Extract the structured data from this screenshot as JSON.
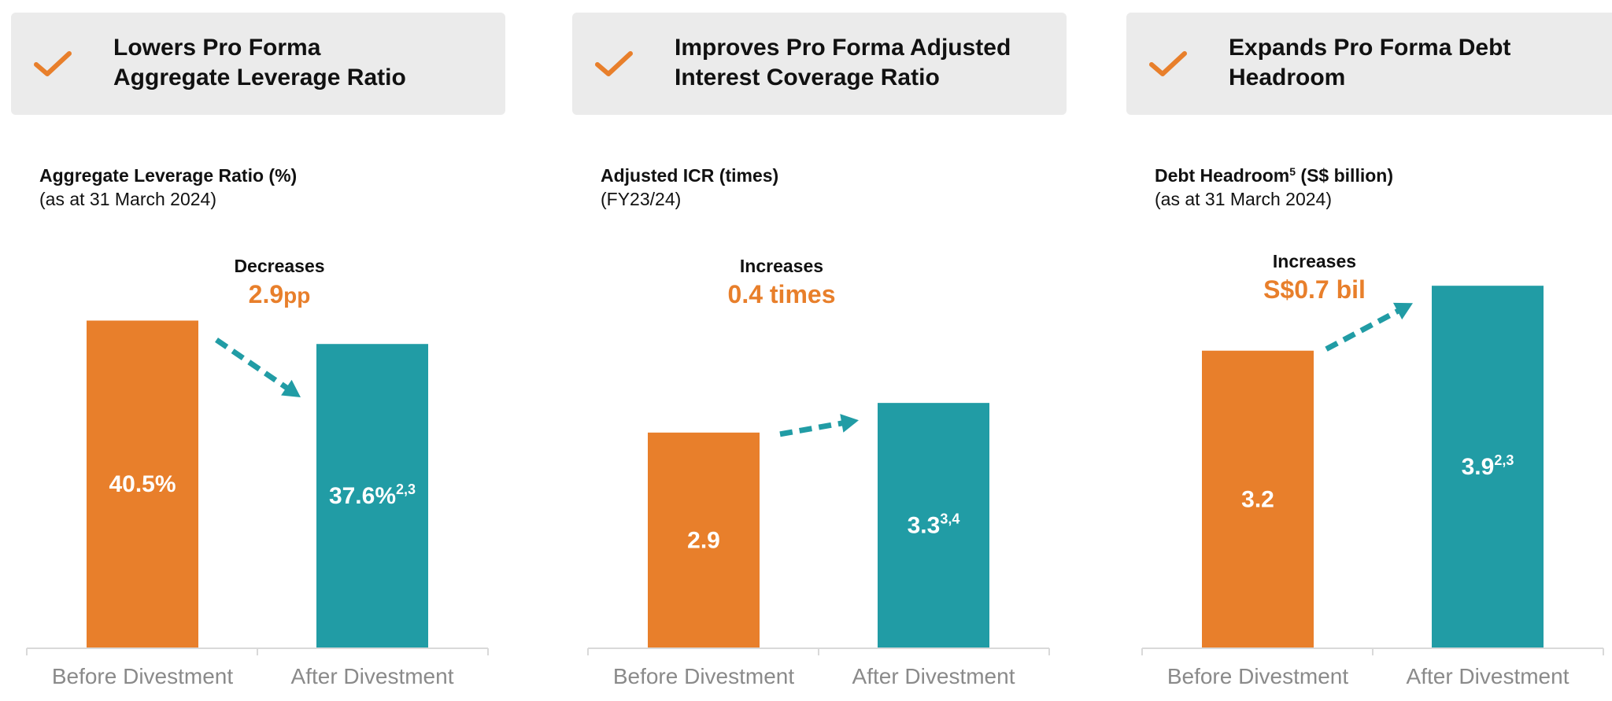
{
  "colors": {
    "before": "#E87F2B",
    "after": "#219CA5",
    "accent": "#E87F2B",
    "header_bg": "#EBEBEB"
  },
  "panels": [
    {
      "header": {
        "icon": "check-icon",
        "title": "Lowers Pro Forma\nAggregate Leverage Ratio"
      },
      "chart_title": "Aggregate Leverage Ratio (%)",
      "chart_title_sup": "",
      "chart_subtitle": "(as at 31 March 2024)",
      "annotation": {
        "text": "Decreases",
        "value_main": "2.9",
        "value_unit": "pp",
        "direction": "down"
      }
    },
    {
      "header": {
        "icon": "check-icon",
        "title": "Improves Pro Forma Adjusted\nInterest Coverage Ratio"
      },
      "chart_title": "Adjusted ICR (times)",
      "chart_title_sup": "",
      "chart_subtitle": "(FY23/24)",
      "annotation": {
        "text": "Increases",
        "value_main": "0.4 times",
        "value_unit": "",
        "direction": "up"
      }
    },
    {
      "header": {
        "icon": "check-icon",
        "title": "Expands Pro Forma Debt\nHeadroom"
      },
      "chart_title": "Debt Headroom",
      "chart_title_sup": "5",
      "chart_title_suffix": " (S$ billion)",
      "chart_subtitle": "(as at 31 March 2024)",
      "annotation": {
        "text": "Increases",
        "value_main": "S$0.7 bil",
        "value_unit": "",
        "direction": "up"
      }
    }
  ],
  "chart_data": [
    {
      "type": "bar",
      "title": "Aggregate Leverage Ratio (%)",
      "subtitle": "(as at 31 March 2024)",
      "categories": [
        "Before Divestment",
        "After Divestment"
      ],
      "values": [
        40.5,
        37.6
      ],
      "labels": [
        "40.5%",
        "37.6%"
      ],
      "label_sups": [
        "",
        "2,3"
      ],
      "colors": [
        "#E87F2B",
        "#219CA5"
      ]
    },
    {
      "type": "bar",
      "title": "Adjusted ICR (times)",
      "subtitle": "(FY23/24)",
      "categories": [
        "Before Divestment",
        "After Divestment"
      ],
      "values": [
        2.9,
        3.3
      ],
      "labels": [
        "2.9",
        "3.3"
      ],
      "label_sups": [
        "",
        "3,4"
      ],
      "colors": [
        "#E87F2B",
        "#219CA5"
      ]
    },
    {
      "type": "bar",
      "title": "Debt Headroom (S$ billion)",
      "subtitle": "(as at 31 March 2024)",
      "categories": [
        "Before Divestment",
        "After Divestment"
      ],
      "values": [
        3.2,
        3.9
      ],
      "labels": [
        "3.2",
        "3.9"
      ],
      "label_sups": [
        "",
        "2,3"
      ],
      "colors": [
        "#E87F2B",
        "#219CA5"
      ]
    }
  ]
}
